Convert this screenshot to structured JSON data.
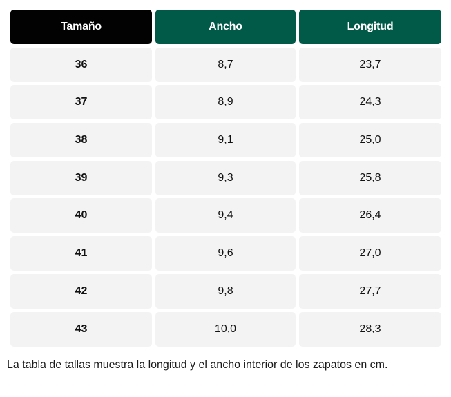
{
  "table": {
    "headers": [
      "Tamaño",
      "Ancho",
      "Longitud"
    ],
    "rows": [
      [
        "36",
        "8,7",
        "23,7"
      ],
      [
        "37",
        "8,9",
        "24,3"
      ],
      [
        "38",
        "9,1",
        "25,0"
      ],
      [
        "39",
        "9,3",
        "25,8"
      ],
      [
        "40",
        "9,4",
        "26,4"
      ],
      [
        "41",
        "9,6",
        "27,0"
      ],
      [
        "42",
        "9,8",
        "27,7"
      ],
      [
        "43",
        "10,0",
        "28,3"
      ]
    ]
  },
  "caption": "La tabla de tallas muestra la longitud y el ancho interior de los zapatos en cm.",
  "colors": {
    "header_size_bg": "#020202",
    "header_green_bg": "#005a47",
    "row_bg": "#f3f3f3",
    "header_text": "#ffffff"
  }
}
